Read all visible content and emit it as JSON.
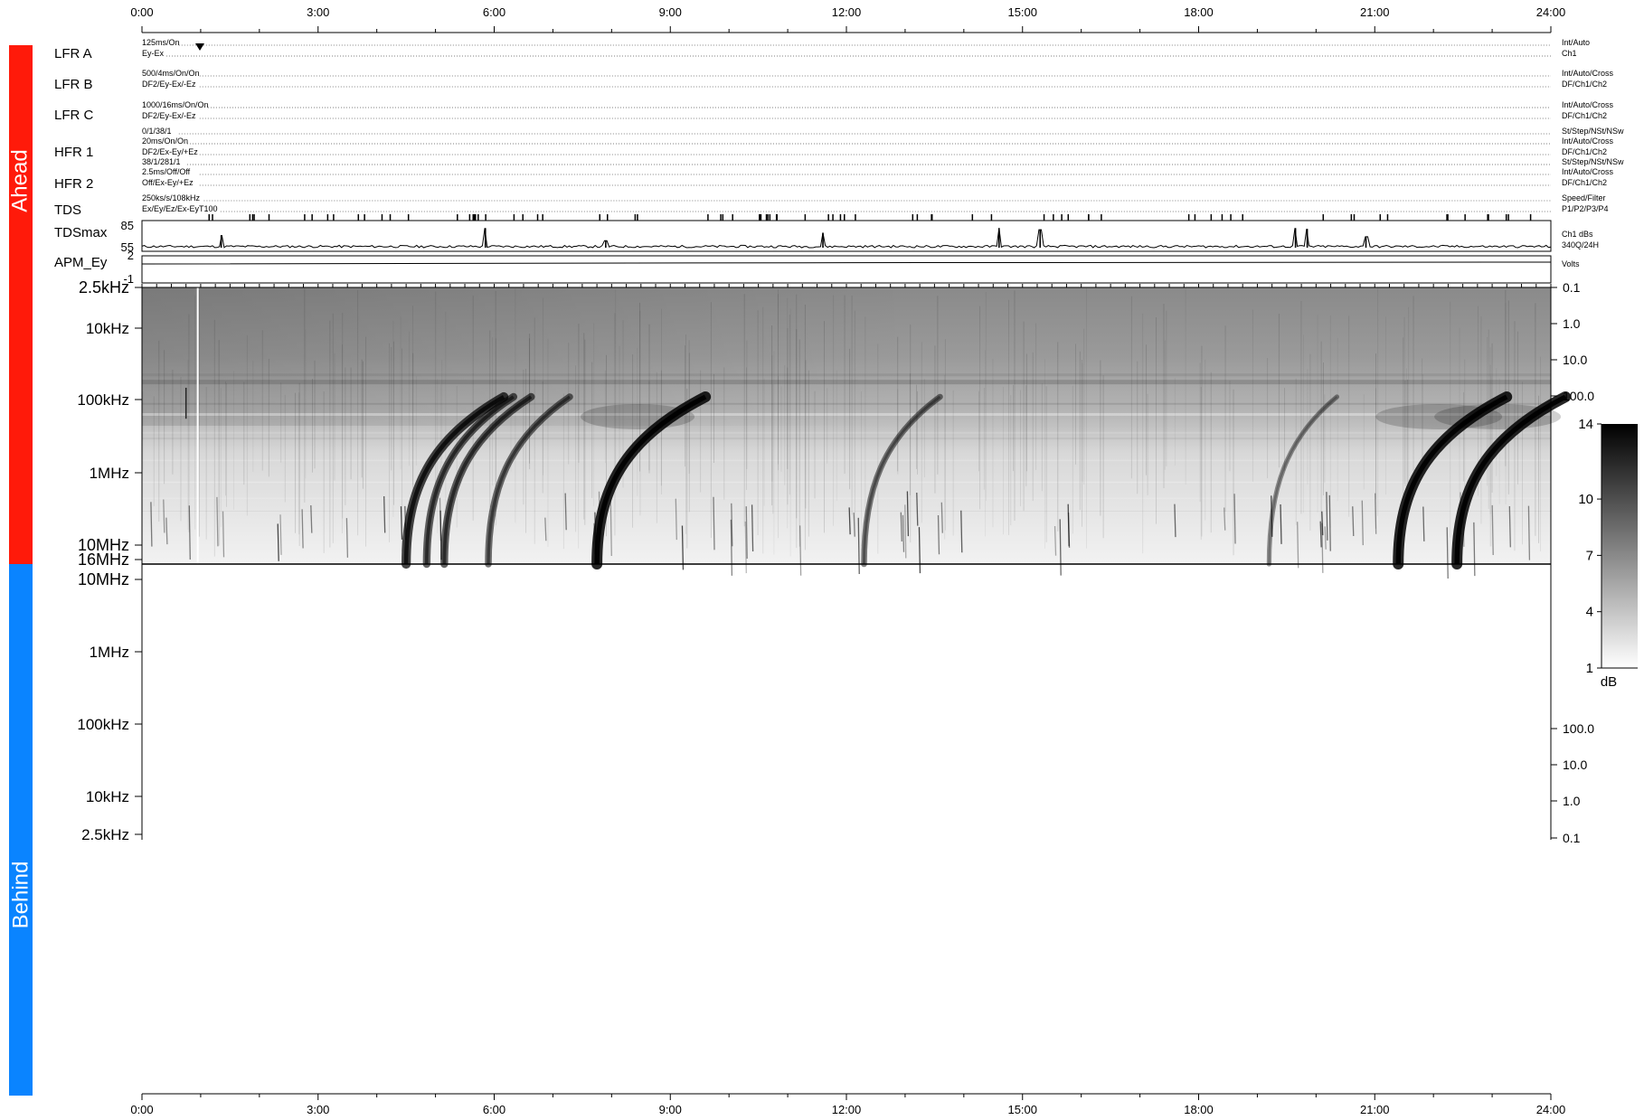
{
  "sides": {
    "ahead": {
      "label": "Ahead",
      "color": "#ff1a0a"
    },
    "behind": {
      "label": "Behind",
      "color": "#0a84ff"
    }
  },
  "time_axis": {
    "ticks": [
      "0:00",
      "3:00",
      "6:00",
      "9:00",
      "12:00",
      "15:00",
      "18:00",
      "21:00",
      "24:00"
    ]
  },
  "modes": [
    {
      "name": "LFR A",
      "lines": [
        "125ms/On",
        "Ey-Ex"
      ],
      "right": [
        "Int/Auto",
        "Ch1"
      ]
    },
    {
      "name": "LFR B",
      "lines": [
        "500/4ms/On/On",
        "DF2/Ey-Ex/-Ez"
      ],
      "right": [
        "Int/Auto/Cross",
        "DF/Ch1/Ch2"
      ]
    },
    {
      "name": "LFR C",
      "lines": [
        "1000/16ms/On/On",
        "DF2/Ey-Ex/-Ez"
      ],
      "right": [
        "Int/Auto/Cross",
        "DF/Ch1/Ch2"
      ]
    },
    {
      "name": "HFR 1",
      "lines": [
        "0/1/38/1",
        "20ms/On/On",
        "DF2/Ex-Ey/+Ez"
      ],
      "right": [
        "St/Step/NSt/NSw",
        "Int/Auto/Cross",
        "DF/Ch1/Ch2"
      ]
    },
    {
      "name": "HFR 2",
      "lines": [
        "38/1/281/1",
        "2.5ms/Off/Off",
        "Off/Ex-Ey/+Ez"
      ],
      "right": [
        "St/Step/NSt/NSw",
        "Int/Auto/Cross",
        "DF/Ch1/Ch2"
      ]
    },
    {
      "name": "TDS",
      "lines": [
        "250ks/s/108kHz",
        "Ex/Ey/Ez/Ex-EyT100"
      ],
      "right": [
        "Speed/Filter",
        "P1/P2/P3/P4"
      ]
    }
  ],
  "tdsmax": {
    "label": "TDSmax",
    "ticks": [
      "85",
      "55"
    ],
    "right": [
      "Ch1 dBs",
      "340Q/24H"
    ]
  },
  "apm": {
    "label": "APM_Ey",
    "ticks": [
      "2",
      "-1"
    ],
    "right": [
      "Volts"
    ]
  },
  "spectrogram": {
    "ahead_freq_ticks": [
      "2.5kHz",
      "10kHz",
      "100kHz",
      "1MHz",
      "10MHz",
      "16MHz"
    ],
    "behind_freq_ticks": [
      "10MHz",
      "1MHz",
      "100kHz",
      "10kHz",
      "2.5kHz"
    ],
    "ahead_right_ticks": [
      "0.1",
      "1.0",
      "10.0",
      "100.0"
    ],
    "behind_right_ticks": [
      "100.0",
      "10.0",
      "1.0",
      "0.1"
    ]
  },
  "colorbar": {
    "ticks": [
      "14",
      "10",
      "7",
      "4",
      "1"
    ],
    "unit": "dB",
    "colors": [
      "#ffffff",
      "#000000"
    ]
  },
  "chart_data": {
    "type": "heatmap",
    "x_range_hours": [
      0,
      24
    ],
    "y_scale": "log",
    "colorbar_range_db": [
      1,
      14
    ],
    "tdsmax_events": [
      {
        "time_h": 1.35,
        "value": 71
      },
      {
        "time_h": 5.85,
        "value": 80
      },
      {
        "time_h": 7.9,
        "value": 64
      },
      {
        "time_h": 11.6,
        "value": 74
      },
      {
        "time_h": 14.6,
        "value": 80
      },
      {
        "time_h": 15.3,
        "value": 78
      },
      {
        "time_h": 19.65,
        "value": 80
      },
      {
        "time_h": 19.85,
        "value": 79
      },
      {
        "time_h": 20.85,
        "value": 69
      }
    ],
    "type_iii_bursts": [
      {
        "start_h": 4.5,
        "intensity": 0.8
      },
      {
        "start_h": 4.85,
        "intensity": 0.6
      },
      {
        "start_h": 5.15,
        "intensity": 0.6
      },
      {
        "start_h": 5.9,
        "intensity": 0.5
      },
      {
        "start_h": 7.75,
        "intensity": 1.0
      },
      {
        "start_h": 12.3,
        "intensity": 0.4
      },
      {
        "start_h": 19.2,
        "intensity": 0.25
      },
      {
        "start_h": 21.4,
        "intensity": 1.0
      },
      {
        "start_h": 22.4,
        "intensity": 1.0
      }
    ]
  }
}
